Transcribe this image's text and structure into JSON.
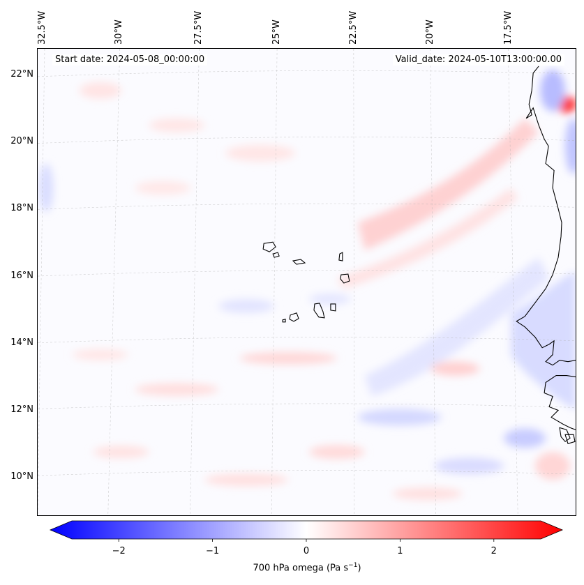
{
  "header": {
    "start_date": "Start date: 2024-05-08_00:00:00",
    "valid_date": "Valid_date: 2024-05-10T13:00:00.00"
  },
  "map": {
    "lon_labels": [
      "32.5°W",
      "30°W",
      "27.5°W",
      "25°W",
      "22.5°W",
      "20°W",
      "17.5°W"
    ],
    "lat_labels": [
      "22°N",
      "20°N",
      "18°N",
      "16°N",
      "14°N",
      "12°N",
      "10°N"
    ],
    "coastline_color": "#000000",
    "gridline_color": "#b0b0b0"
  },
  "colorbar": {
    "ticks": [
      "−2",
      "−1",
      "0",
      "1",
      "2"
    ],
    "tick_values": [
      -2,
      -1,
      0,
      1,
      2
    ],
    "range": [
      -2.5,
      2.5
    ],
    "label_text": "700 hPa omega (Pa s",
    "label_exponent": "−1",
    "label_close": ")",
    "colormap": "bwr",
    "min_color": "#0000ff",
    "mid_color": "#ffffff",
    "max_color": "#ff0000"
  }
}
